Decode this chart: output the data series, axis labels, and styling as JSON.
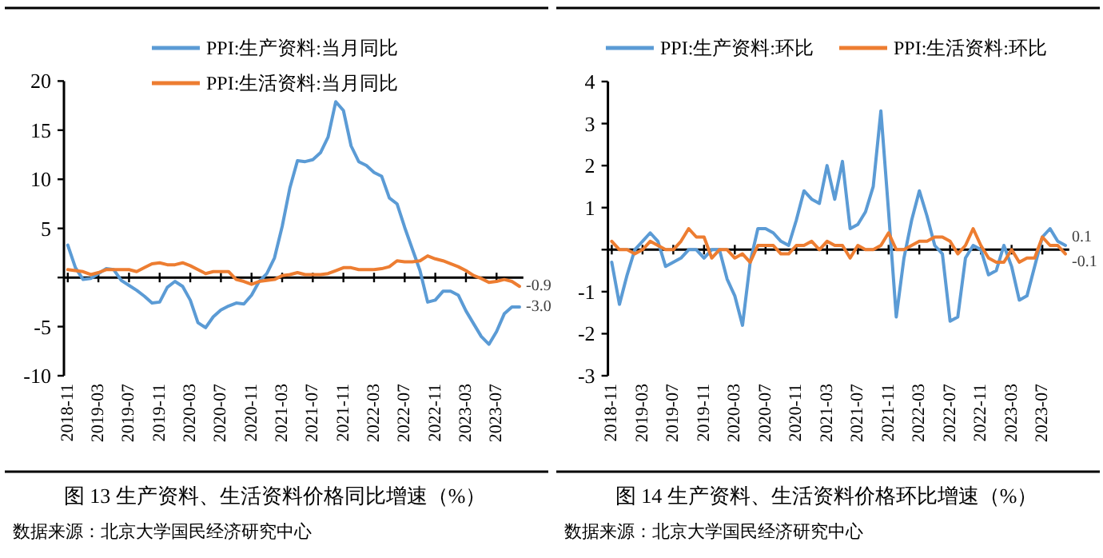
{
  "chart_data": [
    {
      "type": "line",
      "title": "图 13 生产资料、生活资料价格同比增速（%）",
      "annotations": [
        "数据来源：北京大学国民经济研究中心"
      ],
      "categories": [
        "2018-11",
        null,
        null,
        null,
        "2019-03",
        null,
        null,
        null,
        "2019-07",
        null,
        null,
        null,
        "2019-11",
        null,
        null,
        null,
        "2020-03",
        null,
        null,
        null,
        "2020-07",
        null,
        null,
        null,
        "2020-11",
        null,
        null,
        null,
        "2021-03",
        null,
        null,
        null,
        "2021-07",
        null,
        null,
        null,
        "2021-11",
        null,
        null,
        null,
        "2022-03",
        null,
        null,
        null,
        "2022-07",
        null,
        null,
        null,
        "2022-11",
        null,
        null,
        null,
        "2023-03",
        null,
        null,
        null,
        "2023-07",
        null,
        null,
        null
      ],
      "series": [
        {
          "name": "PPI:生产资料:当月同比",
          "color": "#5b9bd5",
          "values": [
            3.3,
            1.0,
            -0.2,
            -0.1,
            0.4,
            0.9,
            0.8,
            -0.3,
            -0.8,
            -1.3,
            -1.9,
            -2.6,
            -2.5,
            -1.0,
            -0.4,
            -0.9,
            -2.3,
            -4.6,
            -5.1,
            -4.0,
            -3.3,
            -2.9,
            -2.6,
            -2.7,
            -1.8,
            -0.4,
            0.4,
            2.0,
            5.2,
            9.1,
            11.9,
            11.8,
            12.0,
            12.7,
            14.3,
            17.9,
            17.0,
            13.4,
            11.8,
            11.4,
            10.7,
            10.3,
            8.1,
            7.5,
            5.1,
            2.9,
            0.7,
            -2.5,
            -2.3,
            -1.4,
            -1.4,
            -1.8,
            -3.4,
            -4.7,
            -6.0,
            -6.8,
            -5.5,
            -3.7,
            -3.0,
            -3.0
          ],
          "value_labels": [
            null,
            null,
            null,
            null,
            null,
            null,
            null,
            null,
            null,
            null,
            null,
            null,
            null,
            null,
            null,
            null,
            null,
            null,
            null,
            null,
            null,
            null,
            null,
            null,
            null,
            null,
            null,
            null,
            null,
            null,
            null,
            null,
            null,
            null,
            null,
            null,
            null,
            null,
            null,
            null,
            null,
            null,
            null,
            null,
            null,
            null,
            null,
            null,
            null,
            null,
            null,
            null,
            null,
            null,
            null,
            null,
            null,
            null,
            null,
            "-3.0"
          ]
        },
        {
          "name": "PPI:生活资料:当月同比",
          "color": "#ed7d31",
          "values": [
            0.8,
            0.7,
            0.6,
            0.3,
            0.5,
            0.8,
            0.8,
            0.8,
            0.8,
            0.6,
            1.0,
            1.4,
            1.5,
            1.3,
            1.3,
            1.5,
            1.2,
            0.8,
            0.4,
            0.6,
            0.6,
            0.6,
            -0.2,
            -0.4,
            -0.7,
            -0.4,
            -0.3,
            -0.2,
            0.2,
            0.3,
            0.5,
            0.3,
            0.3,
            0.3,
            0.4,
            0.7,
            1.0,
            1.0,
            0.8,
            0.8,
            0.8,
            0.9,
            1.1,
            1.7,
            1.6,
            1.6,
            1.7,
            2.2,
            1.9,
            1.7,
            1.4,
            1.1,
            0.7,
            0.2,
            -0.1,
            -0.5,
            -0.4,
            -0.2,
            -0.4,
            -0.9
          ],
          "value_labels": [
            null,
            null,
            null,
            null,
            null,
            null,
            null,
            null,
            null,
            null,
            null,
            null,
            null,
            null,
            null,
            null,
            null,
            null,
            null,
            null,
            null,
            null,
            null,
            null,
            null,
            null,
            null,
            null,
            null,
            null,
            null,
            null,
            null,
            null,
            null,
            null,
            null,
            null,
            null,
            null,
            null,
            null,
            null,
            null,
            null,
            null,
            null,
            null,
            null,
            null,
            null,
            null,
            null,
            null,
            null,
            null,
            null,
            null,
            null,
            "-0.9"
          ]
        }
      ],
      "ylim": [
        -10,
        20
      ],
      "yticks": [
        -10,
        -5,
        {
          "value": 0,
          "label": null
        },
        5,
        10,
        15,
        20
      ],
      "legend": "top"
    },
    {
      "type": "line",
      "title": "图 14 生产资料、生活资料价格环比增速（%）",
      "annotations": [
        "数据来源：北京大学国民经济研究中心"
      ],
      "categories": [
        "2018-11",
        null,
        null,
        null,
        "2019-03",
        null,
        null,
        null,
        "2019-07",
        null,
        null,
        null,
        "2019-11",
        null,
        null,
        null,
        "2020-03",
        null,
        null,
        null,
        "2020-07",
        null,
        null,
        null,
        "2020-11",
        null,
        null,
        null,
        "2021-03",
        null,
        null,
        null,
        "2021-07",
        null,
        null,
        null,
        "2021-11",
        null,
        null,
        null,
        "2022-03",
        null,
        null,
        null,
        "2022-07",
        null,
        null,
        null,
        "2022-11",
        null,
        null,
        null,
        "2023-03",
        null,
        null,
        null,
        "2023-07",
        null,
        null,
        null
      ],
      "series": [
        {
          "name": "PPI:生产资料:环比",
          "color": "#5b9bd5",
          "values": [
            -0.3,
            -1.3,
            -0.6,
            0.0,
            0.2,
            0.4,
            0.2,
            -0.4,
            -0.3,
            -0.2,
            0.0,
            0.0,
            -0.2,
            0.0,
            0.0,
            -0.7,
            -1.1,
            -1.8,
            -0.3,
            0.5,
            0.5,
            0.4,
            0.2,
            0.1,
            0.7,
            1.4,
            1.2,
            1.1,
            2.0,
            1.2,
            2.1,
            0.5,
            0.6,
            0.9,
            1.5,
            3.3,
            0.9,
            -1.6,
            -0.2,
            0.7,
            1.4,
            0.8,
            0.1,
            -0.1,
            -1.7,
            -1.6,
            -0.2,
            0.1,
            0.0,
            -0.6,
            -0.5,
            0.1,
            -0.4,
            -1.2,
            -1.1,
            -0.4,
            0.3,
            0.5,
            0.2,
            0.1
          ],
          "value_labels": [
            null,
            null,
            null,
            null,
            null,
            null,
            null,
            null,
            null,
            null,
            null,
            null,
            null,
            null,
            null,
            null,
            null,
            null,
            null,
            null,
            null,
            null,
            null,
            null,
            null,
            null,
            null,
            null,
            null,
            null,
            null,
            null,
            null,
            null,
            null,
            null,
            null,
            null,
            null,
            null,
            null,
            null,
            null,
            null,
            null,
            null,
            null,
            null,
            null,
            null,
            null,
            null,
            null,
            null,
            null,
            null,
            null,
            null,
            null,
            "0.1"
          ]
        },
        {
          "name": "PPI:生活资料:环比",
          "color": "#ed7d31",
          "values": [
            0.2,
            0.0,
            0.0,
            -0.1,
            0.0,
            0.2,
            0.1,
            0.0,
            0.0,
            0.2,
            0.5,
            0.3,
            0.3,
            -0.2,
            0.0,
            0.0,
            -0.2,
            -0.1,
            -0.3,
            0.1,
            0.1,
            0.1,
            -0.1,
            -0.1,
            0.1,
            0.1,
            0.2,
            0.0,
            0.2,
            0.1,
            0.1,
            -0.2,
            0.1,
            0.0,
            0.0,
            0.1,
            0.4,
            0.0,
            0.0,
            0.1,
            0.2,
            0.2,
            0.3,
            0.3,
            0.2,
            -0.1,
            0.1,
            0.5,
            0.1,
            -0.2,
            -0.3,
            -0.3,
            0.0,
            -0.3,
            -0.2,
            -0.2,
            0.3,
            0.1,
            0.1,
            -0.1
          ],
          "value_labels": [
            null,
            null,
            null,
            null,
            null,
            null,
            null,
            null,
            null,
            null,
            null,
            null,
            null,
            null,
            null,
            null,
            null,
            null,
            null,
            null,
            null,
            null,
            null,
            null,
            null,
            null,
            null,
            null,
            null,
            null,
            null,
            null,
            null,
            null,
            null,
            null,
            null,
            null,
            null,
            null,
            null,
            null,
            null,
            null,
            null,
            null,
            null,
            null,
            null,
            null,
            null,
            null,
            null,
            null,
            null,
            null,
            null,
            null,
            null,
            "-0.1"
          ]
        }
      ],
      "ylim": [
        -3,
        4
      ],
      "yticks": [
        -3,
        -2,
        -1,
        {
          "value": 0,
          "label": null
        },
        1,
        2,
        3,
        4
      ],
      "legend": "top"
    }
  ]
}
